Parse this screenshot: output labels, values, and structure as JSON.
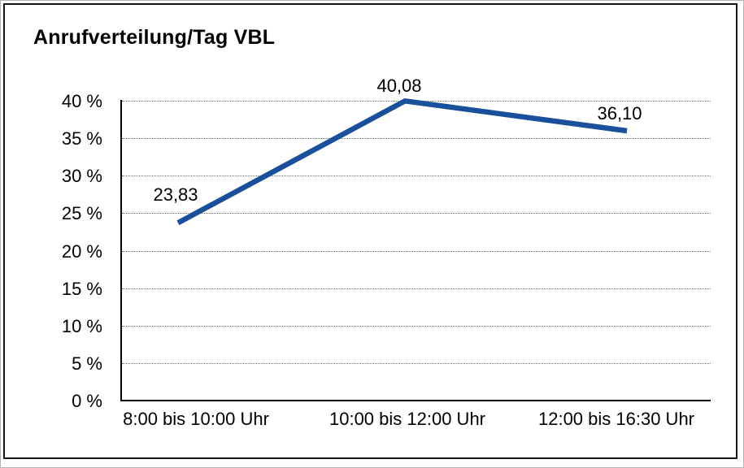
{
  "window": {
    "title": "Anrufverteilung/Tag VBL"
  },
  "chart_data": {
    "type": "line",
    "title": "Anrufverteilung/Tag VBL",
    "categories": [
      "8:00 bis 10:00 Uhr",
      "10:00 bis 12:00 Uhr",
      "12:00 bis 16:30 Uhr"
    ],
    "values": [
      23.83,
      40.08,
      36.1
    ],
    "value_labels": [
      "23,83",
      "40,08",
      "36,10"
    ],
    "ytick_labels": [
      "0 %",
      "5 %",
      "10 %",
      "15 %",
      "20 %",
      "25 %",
      "30 %",
      "35 %",
      "40 %"
    ],
    "ylim": [
      0,
      40
    ],
    "ytick_step": 5,
    "xlabel": "",
    "ylabel": "",
    "grid": "horizontal dotted",
    "legend_position": "none",
    "colors": {
      "line": "#1a4f9b",
      "axis": "#000000",
      "gridline": "#6e6e6e",
      "text": "#000000",
      "background": "#ffffff",
      "frame_border": "#161616"
    }
  }
}
